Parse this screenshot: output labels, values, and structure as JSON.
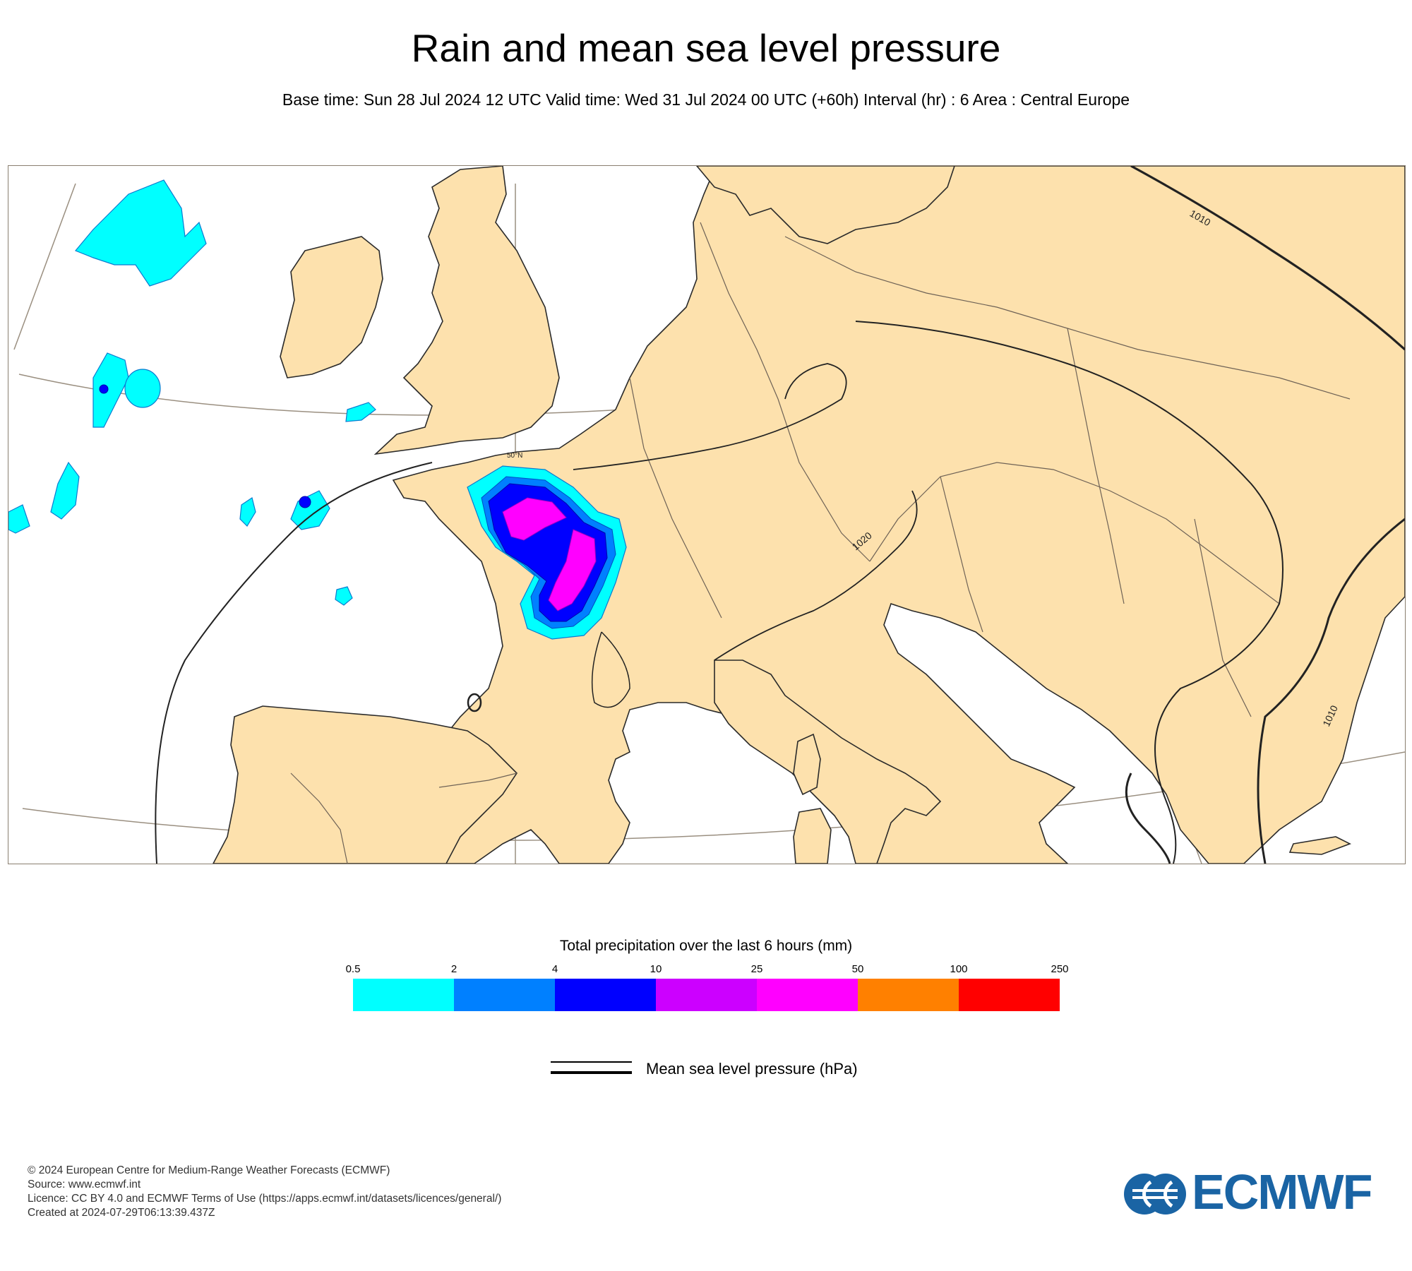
{
  "header": {
    "title": "Rain and mean sea level pressure",
    "subtitle": "Base time: Sun 28 Jul 2024 12 UTC Valid time: Wed 31 Jul 2024 00 UTC (+60h) Interval (hr) : 6 Area : Central Europe"
  },
  "map": {
    "area": "Central Europe",
    "latitude_label": "50°N",
    "isobar_labels": [
      "1010",
      "1020",
      "1010"
    ],
    "colors": {
      "land": "#fde1ad",
      "sea": "#ffffff",
      "coast": "#222222",
      "graticule": "#9a8f80"
    }
  },
  "legend": {
    "title": "Total precipitation over the last 6 hours (mm)",
    "ticks": [
      "0.5",
      "2",
      "4",
      "10",
      "25",
      "50",
      "100",
      "250"
    ],
    "colors": [
      "#00ffff",
      "#0080ff",
      "#0000ff",
      "#cc00ff",
      "#ff00ff",
      "#ff8000",
      "#ff0000"
    ],
    "mslp_label": "Mean sea level pressure (hPa)"
  },
  "footer": {
    "line1": "© 2024 European Centre for Medium-Range Weather Forecasts (ECMWF)",
    "line2": "Source: www.ecmwf.int",
    "line3": "Licence: CC BY 4.0 and ECMWF Terms of Use (https://apps.ecmwf.int/datasets/licences/general/)",
    "line4": "Created at 2024-07-29T06:13:39.437Z"
  },
  "logo": {
    "text": "ECMWF",
    "color": "#1a64a4"
  }
}
